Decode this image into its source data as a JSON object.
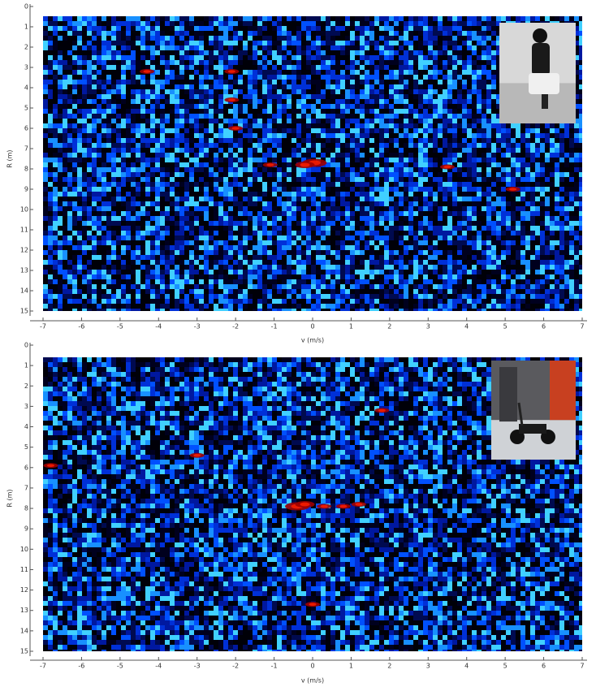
{
  "chart_data": [
    {
      "type": "heatmap",
      "xlabel": "v (m/s)",
      "ylabel": "R (m)",
      "xlim": [
        -7,
        7
      ],
      "ylim": [
        0,
        15
      ],
      "xticks": [
        -7,
        -6,
        -5,
        -4,
        -3,
        -2,
        -1,
        0,
        1,
        2,
        3,
        4,
        5,
        6,
        7
      ],
      "yticks": [
        0,
        1,
        2,
        3,
        4,
        5,
        6,
        7,
        8,
        9,
        10,
        11,
        12,
        13,
        14,
        15
      ]
    },
    {
      "type": "heatmap",
      "xlabel": "v (m/s)",
      "ylabel": "R (m)",
      "xlim": [
        -7,
        7
      ],
      "ylim": [
        0,
        15
      ],
      "xticks": [
        -7,
        -6,
        -5,
        -4,
        -3,
        -2,
        -1,
        0,
        1,
        2,
        3,
        4,
        5,
        6,
        7
      ],
      "yticks": [
        0,
        1,
        2,
        3,
        4,
        5,
        6,
        7,
        8,
        9,
        10,
        11,
        12,
        13,
        14,
        15
      ]
    }
  ]
}
